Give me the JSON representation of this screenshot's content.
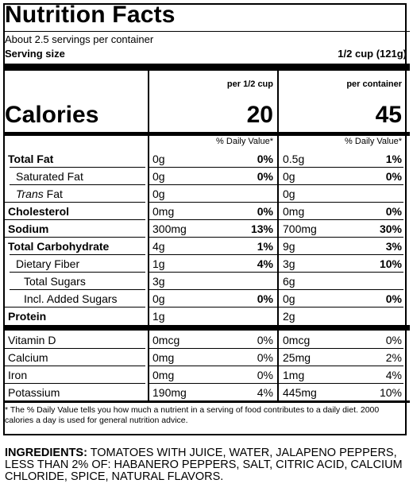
{
  "title": "Nutrition Facts",
  "servings_per_container": "About 2.5 servings per container",
  "serving_size_label": "Serving size",
  "serving_size_value": "1/2 cup (121g)",
  "col1_header": "per 1/2 cup",
  "col2_header": "per container",
  "calories_label": "Calories",
  "calories_col1": "20",
  "calories_col2": "45",
  "dv_header": "% Daily Value*",
  "rows": [
    {
      "name": "Total Fat",
      "a1": "0g",
      "p1": "0%",
      "a2": "0.5g",
      "p2": "1%"
    },
    {
      "name": "Saturated Fat",
      "a1": "0g",
      "p1": "0%",
      "a2": "0g",
      "p2": "0%"
    },
    {
      "name_italic": "Trans",
      "name_rest": " Fat",
      "a1": "0g",
      "p1": "",
      "a2": "0g",
      "p2": ""
    },
    {
      "name": "Cholesterol",
      "a1": "0mg",
      "p1": "0%",
      "a2": "0mg",
      "p2": "0%"
    },
    {
      "name": "Sodium",
      "a1": "300mg",
      "p1": "13%",
      "a2": "700mg",
      "p2": "30%"
    },
    {
      "name": "Total Carbohydrate",
      "a1": "4g",
      "p1": "1%",
      "a2": "9g",
      "p2": "3%"
    },
    {
      "name": "Dietary Fiber",
      "a1": "1g",
      "p1": "4%",
      "a2": "3g",
      "p2": "10%"
    },
    {
      "name": "Total Sugars",
      "a1": "3g",
      "p1": "",
      "a2": "6g",
      "p2": ""
    },
    {
      "name": "Incl. Added Sugars",
      "a1": "0g",
      "p1": "0%",
      "a2": "0g",
      "p2": "0%"
    },
    {
      "name": "Protein",
      "a1": "1g",
      "p1": "",
      "a2": "2g",
      "p2": ""
    },
    {
      "name": "Vitamin D",
      "a1": "0mcg",
      "p1": "0%",
      "a2": "0mcg",
      "p2": "0%"
    },
    {
      "name": "Calcium",
      "a1": "0mg",
      "p1": "0%",
      "a2": "25mg",
      "p2": "2%"
    },
    {
      "name": "Iron",
      "a1": "0mg",
      "p1": "0%",
      "a2": "1mg",
      "p2": "4%"
    },
    {
      "name": "Potassium",
      "a1": "190mg",
      "p1": "4%",
      "a2": "445mg",
      "p2": "10%"
    }
  ],
  "footnote": "* The % Daily Value tells you how much a nutrient in a serving of food contributes to a daily diet. 2000 calories a day is used for general nutrition advice.",
  "ingredients_label": "INGREDIENTS:",
  "ingredients_text": " TOMATOES WITH JUICE, WATER, JALAPENO PEPPERS, LESS THAN 2% OF: HABANERO PEPPERS, SALT, CITRIC ACID, CALCIUM CHLORIDE, SPICE, NATURAL FLAVORS."
}
